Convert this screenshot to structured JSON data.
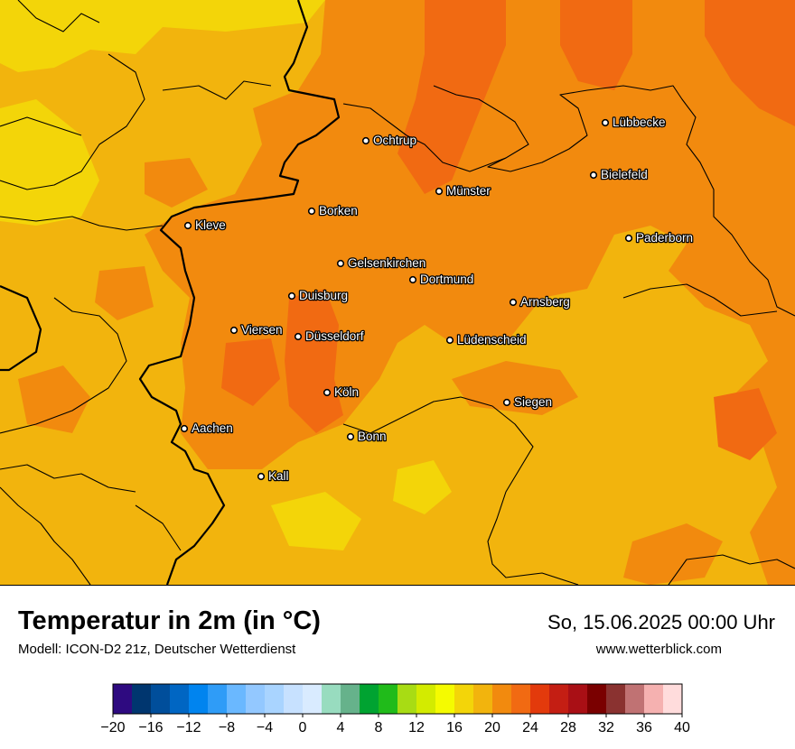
{
  "title": "Temperatur in 2m (in °C)",
  "subtitle": "Modell: ICON-D2 21z, Deutscher Wetterdienst",
  "datetime": "So, 15.06.2025 00:00 Uhr",
  "website": "www.wetterblick.com",
  "cities": [
    {
      "name": "Lübbecke"
    },
    {
      "name": "Ochtrup"
    },
    {
      "name": "Bielefeld"
    },
    {
      "name": "Münster"
    },
    {
      "name": "Borken"
    },
    {
      "name": "Kleve"
    },
    {
      "name": "Paderborn"
    },
    {
      "name": "Gelsenkirchen"
    },
    {
      "name": "Dortmund"
    },
    {
      "name": "Duisburg"
    },
    {
      "name": "Arnsberg"
    },
    {
      "name": "Viersen"
    },
    {
      "name": "Düsseldorf"
    },
    {
      "name": "Lüdenscheid"
    },
    {
      "name": "Köln"
    },
    {
      "name": "Siegen"
    },
    {
      "name": "Aachen"
    },
    {
      "name": "Bonn"
    },
    {
      "name": "Kall"
    }
  ],
  "colorbar": {
    "tick_labels": [
      "−20",
      "−16",
      "−12",
      "−8",
      "−4",
      "0",
      "4",
      "8",
      "12",
      "16",
      "20",
      "24",
      "28",
      "32",
      "36",
      "40"
    ],
    "colors": [
      "#2e0a80",
      "#00366f",
      "#004e9b",
      "#0066c3",
      "#0084ef",
      "#2f9cf7",
      "#6ab8ff",
      "#93c8ff",
      "#a9d4ff",
      "#c7e1ff",
      "#d9ebff",
      "#98dcbf",
      "#66b28b",
      "#00a331",
      "#20bb1a",
      "#a8dc14",
      "#d3eb00",
      "#f5fb00",
      "#f3d509",
      "#f2b40d",
      "#f28a0e",
      "#f16a12",
      "#e33a0c",
      "#c41e13",
      "#a90f15",
      "#7a0000",
      "#8a3230",
      "#c07273",
      "#f5b1b0",
      "#ffdcdc"
    ]
  },
  "fill_colors": {
    "yellow": "#f2b40d",
    "light_yellow": "#f3d509",
    "orange": "#f28a0e",
    "dark_orange": "#f16a12",
    "border": "#000000"
  }
}
